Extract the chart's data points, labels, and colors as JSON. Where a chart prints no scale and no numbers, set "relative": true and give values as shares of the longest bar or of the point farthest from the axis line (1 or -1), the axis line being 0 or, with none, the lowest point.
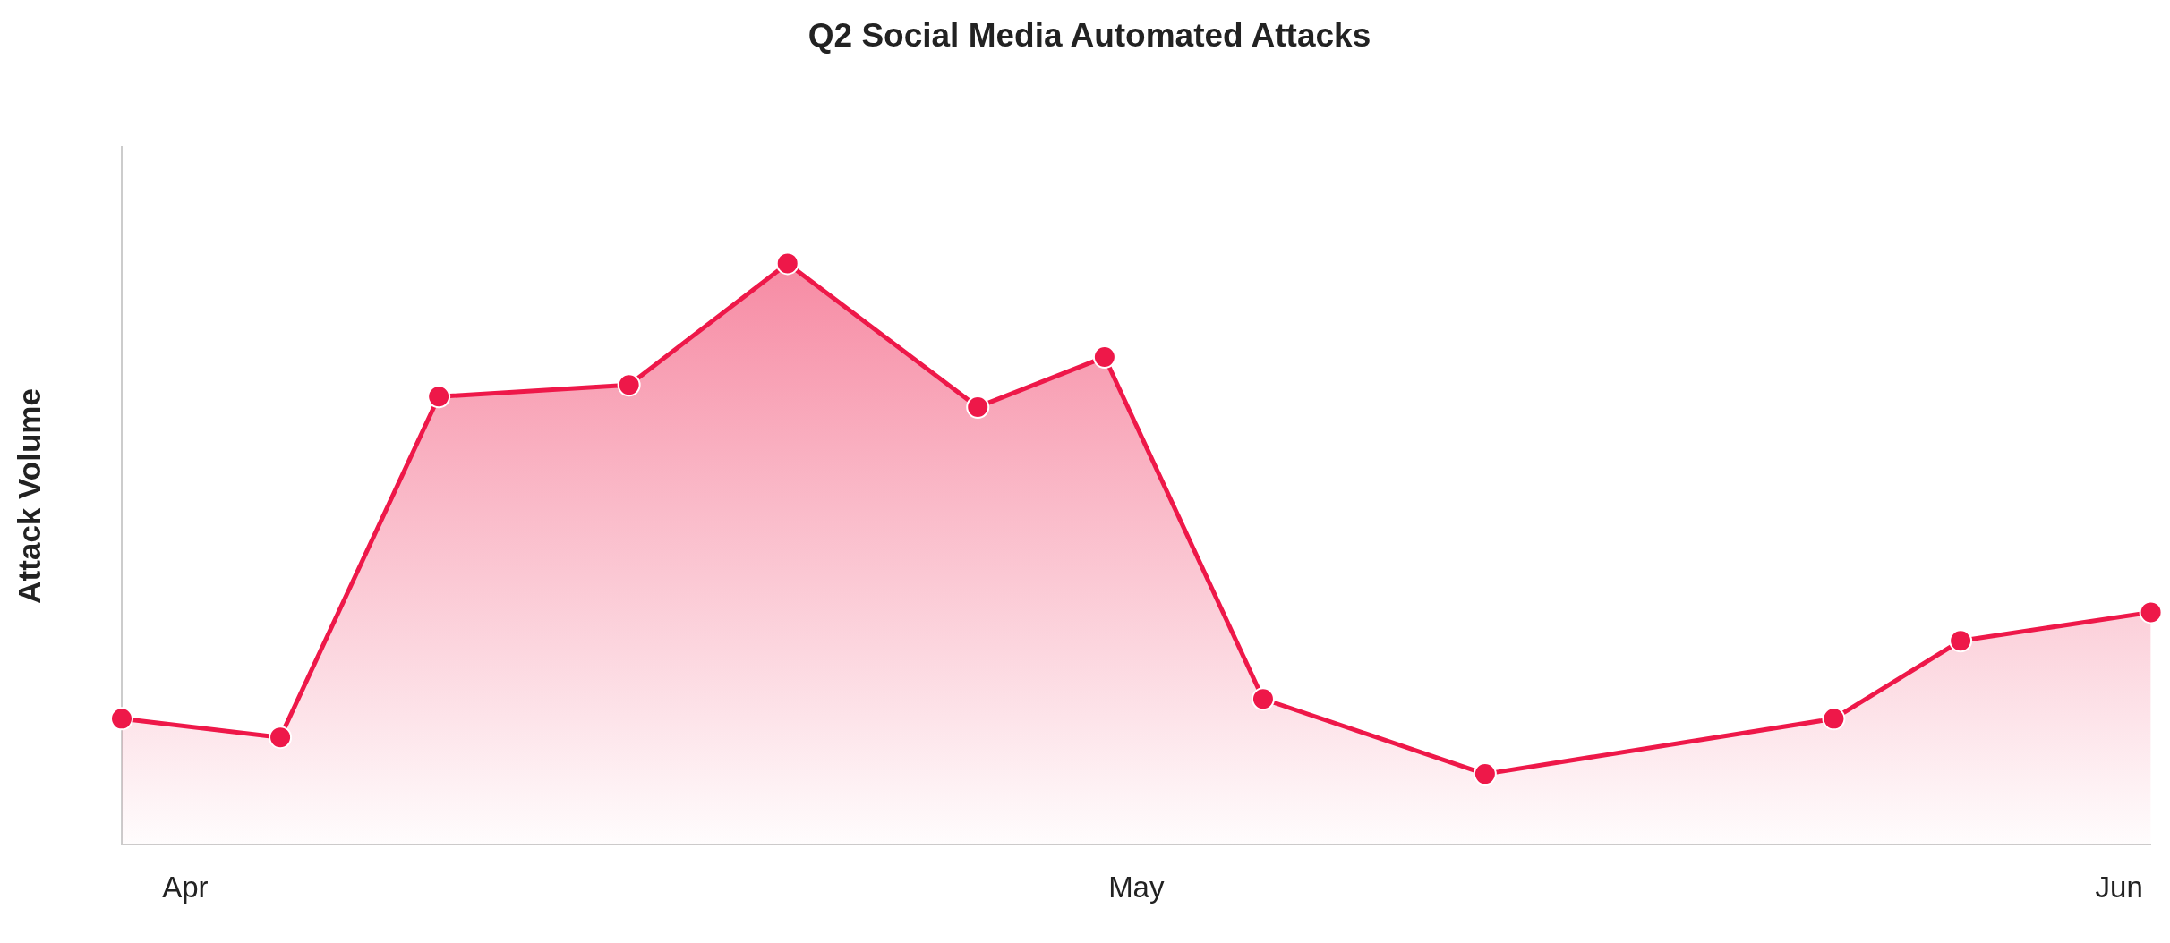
{
  "chart_data": {
    "type": "area",
    "title": "Q2 Social Media Automated Attacks",
    "ylabel": "Attack Volume",
    "relative": true,
    "x": [
      "--03-30",
      "--04-04",
      "--04-09",
      "--04-15",
      "--04-20",
      "--04-26",
      "--04-30",
      "--05-05",
      "--05-12",
      "--05-23",
      "--05-27",
      "--06-02"
    ],
    "values": [
      0.217,
      0.185,
      0.771,
      0.791,
      1,
      0.753,
      0.839,
      0.251,
      0.122,
      0.217,
      0.351,
      0.4
    ],
    "color": "#ee1849",
    "xlim": [
      "--03-30",
      "--06-02"
    ],
    "xticks": [
      {
        "value": "--04-01",
        "label": "Apr"
      },
      {
        "value": "--05-01",
        "label": "May"
      },
      {
        "value": "--06-01",
        "label": "Jun"
      }
    ],
    "grid": false,
    "legend": false,
    "marker": "circle",
    "line_style": "solid"
  }
}
